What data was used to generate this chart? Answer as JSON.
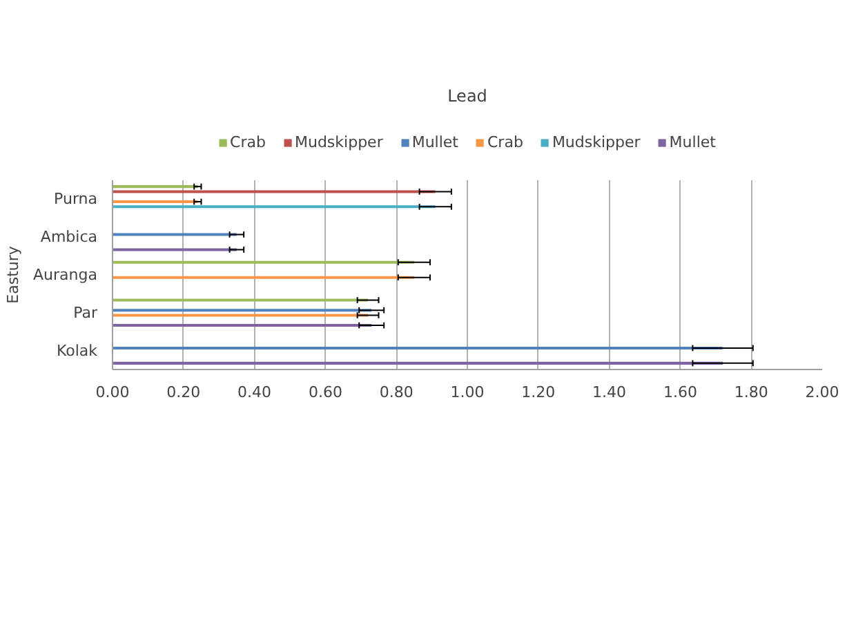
{
  "chart_data": {
    "type": "bar",
    "orientation": "horizontal",
    "title": "Lead",
    "ylabel": "Eastury",
    "categories": [
      "Purna",
      "Ambica",
      "Auranga",
      "Par",
      "Kolak"
    ],
    "series": [
      {
        "name": "Crab",
        "color": "#9bbb59",
        "values": [
          0.24,
          null,
          0.85,
          0.72,
          null
        ],
        "errors": [
          0.01,
          null,
          0.045,
          0.03,
          null
        ]
      },
      {
        "name": "Mudskipper",
        "color": "#c0504d",
        "values": [
          0.91,
          null,
          null,
          null,
          null
        ],
        "errors": [
          0.045,
          null,
          null,
          null,
          null
        ]
      },
      {
        "name": "Mullet",
        "color": "#4f81bd",
        "values": [
          null,
          0.35,
          null,
          0.73,
          1.72
        ],
        "errors": [
          null,
          0.02,
          null,
          0.035,
          0.085
        ]
      },
      {
        "name": "Crab",
        "color": "#f79646",
        "values": [
          0.24,
          null,
          0.85,
          0.72,
          null
        ],
        "errors": [
          0.01,
          null,
          0.045,
          0.03,
          null
        ]
      },
      {
        "name": "Mudskipper",
        "color": "#4bacc6",
        "values": [
          0.91,
          null,
          null,
          null,
          null
        ],
        "errors": [
          0.045,
          null,
          null,
          null,
          null
        ]
      },
      {
        "name": "Mullet",
        "color": "#8064a2",
        "values": [
          null,
          0.35,
          null,
          0.73,
          1.72
        ],
        "errors": [
          null,
          0.02,
          null,
          0.035,
          0.085
        ]
      }
    ],
    "xlim": [
      0,
      2
    ],
    "xticks": [
      {
        "value": 0,
        "label": "0.00"
      },
      {
        "value": 0.2,
        "label": "0.20"
      },
      {
        "value": 0.4,
        "label": "0.40"
      },
      {
        "value": 0.6,
        "label": "0.60"
      },
      {
        "value": 0.8,
        "label": "0.80"
      },
      {
        "value": 1.0,
        "label": "1.00"
      },
      {
        "value": 1.2,
        "label": "1.20"
      },
      {
        "value": 1.4,
        "label": "1.40"
      },
      {
        "value": 1.6,
        "label": "1.60"
      },
      {
        "value": 1.8,
        "label": "1.80"
      },
      {
        "value": 2.0,
        "label": "2.00"
      }
    ],
    "grid": "x",
    "legend": "top"
  }
}
